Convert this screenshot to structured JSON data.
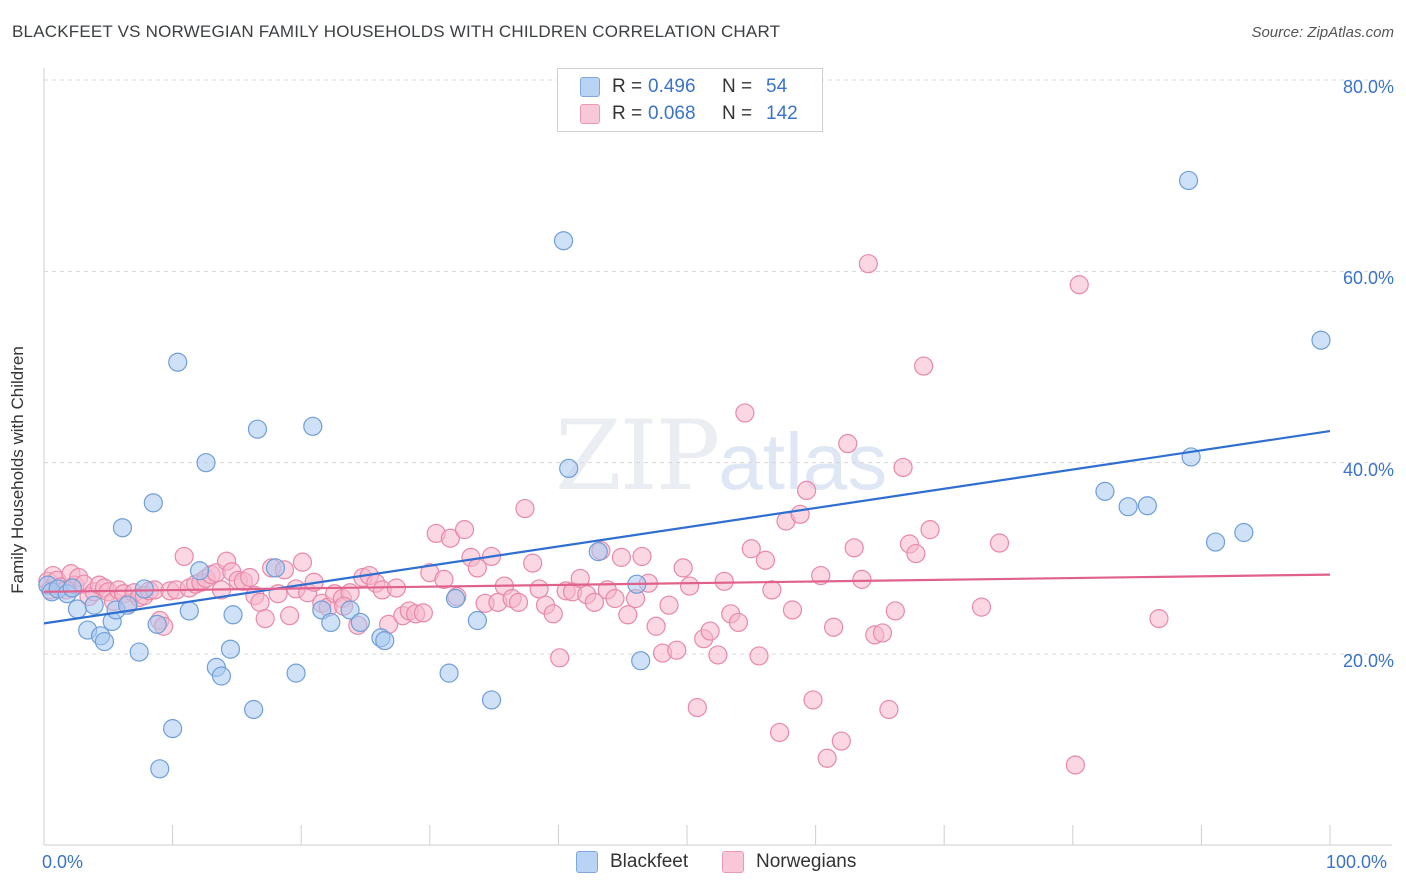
{
  "title": "BLACKFEET VS NORWEGIAN FAMILY HOUSEHOLDS WITH CHILDREN CORRELATION CHART",
  "source": "Source: ZipAtlas.com",
  "watermark": {
    "zip": "ZIP",
    "atlas": "atlas"
  },
  "colors": {
    "blue_fill": "#a8c8f0",
    "blue_stroke": "#6f9fd8",
    "blue_line": "#2f6fcf",
    "pink_fill": "#f6b6cc",
    "pink_stroke": "#e889a8",
    "pink_line": "#e0608e",
    "axis_label": "#3b73c8",
    "grid": "#d8d8d8"
  },
  "legend_top": {
    "rows": [
      {
        "r_label": "R =",
        "r_value": "0.496",
        "n_label": "N =",
        "n_value": "54",
        "color": "blue"
      },
      {
        "r_label": "R =",
        "r_value": "0.068",
        "n_label": "N =",
        "n_value": "142",
        "color": "pink"
      }
    ]
  },
  "legend_bottom": [
    {
      "label": "Blackfeet",
      "color": "blue"
    },
    {
      "label": "Norwegians",
      "color": "pink"
    }
  ],
  "chart_data": {
    "type": "scatter",
    "title": "BLACKFEET VS NORWEGIAN FAMILY HOUSEHOLDS WITH CHILDREN CORRELATION CHART",
    "xlabel": "",
    "ylabel": "Family Households with Children",
    "xlim": [
      0,
      100
    ],
    "ylim": [
      0,
      85
    ],
    "x_tick_labels": [
      "0.0%",
      "100.0%"
    ],
    "y_ticks": [
      20,
      40,
      60,
      80
    ],
    "y_tick_labels": [
      "20.0%",
      "40.0%",
      "60.0%",
      "80.0%"
    ],
    "grid": "horizontal dashed",
    "legend": "top-center",
    "series": [
      {
        "name": "Blackfeet",
        "color": "blue",
        "trend": {
          "x0": 0,
          "y0": 23.2,
          "x1": 100,
          "y1": 43.3
        },
        "points": [
          [
            0.3,
            27.2
          ],
          [
            0.6,
            26.5
          ],
          [
            1.1,
            26.8
          ],
          [
            1.8,
            26.3
          ],
          [
            2.2,
            26.9
          ],
          [
            2.6,
            24.7
          ],
          [
            3.4,
            22.5
          ],
          [
            3.9,
            25.1
          ],
          [
            4.4,
            21.9
          ],
          [
            4.7,
            21.3
          ],
          [
            5.3,
            23.4
          ],
          [
            5.6,
            24.6
          ],
          [
            6.1,
            33.2
          ],
          [
            6.5,
            25.1
          ],
          [
            7.4,
            20.2
          ],
          [
            7.8,
            26.8
          ],
          [
            8.5,
            35.8
          ],
          [
            8.8,
            23.1
          ],
          [
            9.0,
            8.0
          ],
          [
            10.0,
            12.2
          ],
          [
            10.4,
            50.5
          ],
          [
            11.3,
            24.5
          ],
          [
            12.1,
            28.7
          ],
          [
            12.6,
            40.0
          ],
          [
            13.4,
            18.6
          ],
          [
            13.8,
            17.7
          ],
          [
            14.5,
            20.5
          ],
          [
            14.7,
            24.1
          ],
          [
            16.3,
            14.2
          ],
          [
            16.6,
            43.5
          ],
          [
            18.0,
            29.0
          ],
          [
            19.6,
            18.0
          ],
          [
            20.9,
            43.8
          ],
          [
            21.6,
            24.6
          ],
          [
            22.3,
            23.3
          ],
          [
            23.8,
            24.6
          ],
          [
            24.6,
            23.3
          ],
          [
            26.2,
            21.7
          ],
          [
            26.5,
            21.4
          ],
          [
            31.5,
            18.0
          ],
          [
            32.0,
            25.8
          ],
          [
            33.7,
            23.5
          ],
          [
            34.8,
            15.2
          ],
          [
            40.4,
            63.2
          ],
          [
            40.8,
            39.4
          ],
          [
            43.1,
            30.7
          ],
          [
            46.1,
            27.3
          ],
          [
            46.4,
            19.3
          ],
          [
            82.5,
            37.0
          ],
          [
            84.3,
            35.4
          ],
          [
            85.8,
            35.5
          ],
          [
            89.0,
            69.5
          ],
          [
            89.2,
            40.6
          ],
          [
            91.1,
            31.7
          ],
          [
            93.3,
            32.7
          ],
          [
            99.3,
            52.8
          ]
        ]
      },
      {
        "name": "Norwegians",
        "color": "pink",
        "trend": {
          "x0": 0,
          "y0": 26.5,
          "x1": 100,
          "y1": 28.3
        },
        "points": [
          [
            0.3,
            27.6
          ],
          [
            0.5,
            26.7
          ],
          [
            0.7,
            28.2
          ],
          [
            1.0,
            27.7
          ],
          [
            1.3,
            27.0
          ],
          [
            1.7,
            26.7
          ],
          [
            2.1,
            28.4
          ],
          [
            2.4,
            27.2
          ],
          [
            2.7,
            28.0
          ],
          [
            3.1,
            27.3
          ],
          [
            3.5,
            26.0
          ],
          [
            3.9,
            26.5
          ],
          [
            4.3,
            27.2
          ],
          [
            4.7,
            26.9
          ],
          [
            5.0,
            26.5
          ],
          [
            5.4,
            25.5
          ],
          [
            5.8,
            26.7
          ],
          [
            6.2,
            26.3
          ],
          [
            6.6,
            25.3
          ],
          [
            7.0,
            26.4
          ],
          [
            7.4,
            25.9
          ],
          [
            7.8,
            26.1
          ],
          [
            8.2,
            26.6
          ],
          [
            8.6,
            26.7
          ],
          [
            9.0,
            23.5
          ],
          [
            9.3,
            22.9
          ],
          [
            9.8,
            26.6
          ],
          [
            10.3,
            26.7
          ],
          [
            10.9,
            30.2
          ],
          [
            11.3,
            26.9
          ],
          [
            11.8,
            27.3
          ],
          [
            12.2,
            27.5
          ],
          [
            12.6,
            27.9
          ],
          [
            13.0,
            28.3
          ],
          [
            13.4,
            28.5
          ],
          [
            13.8,
            26.7
          ],
          [
            14.2,
            29.7
          ],
          [
            14.6,
            28.6
          ],
          [
            15.1,
            27.7
          ],
          [
            15.5,
            27.6
          ],
          [
            16.0,
            28.0
          ],
          [
            16.4,
            26.1
          ],
          [
            16.8,
            25.4
          ],
          [
            17.2,
            23.7
          ],
          [
            17.7,
            29.0
          ],
          [
            18.2,
            26.3
          ],
          [
            18.7,
            28.8
          ],
          [
            19.1,
            24.0
          ],
          [
            19.6,
            26.8
          ],
          [
            20.1,
            29.6
          ],
          [
            20.5,
            26.4
          ],
          [
            21.0,
            27.5
          ],
          [
            21.6,
            25.3
          ],
          [
            22.1,
            24.9
          ],
          [
            22.6,
            26.3
          ],
          [
            23.2,
            25.8
          ],
          [
            23.8,
            26.4
          ],
          [
            24.4,
            23.0
          ],
          [
            24.8,
            28.0
          ],
          [
            25.3,
            28.2
          ],
          [
            25.8,
            27.4
          ],
          [
            26.3,
            26.7
          ],
          [
            26.8,
            23.1
          ],
          [
            27.4,
            26.9
          ],
          [
            27.9,
            24.0
          ],
          [
            28.4,
            24.5
          ],
          [
            28.9,
            24.2
          ],
          [
            29.5,
            24.3
          ],
          [
            30.0,
            28.5
          ],
          [
            30.5,
            32.6
          ],
          [
            31.1,
            27.8
          ],
          [
            31.6,
            32.1
          ],
          [
            32.1,
            26.0
          ],
          [
            32.7,
            33.0
          ],
          [
            33.2,
            30.1
          ],
          [
            33.7,
            29.0
          ],
          [
            34.3,
            25.3
          ],
          [
            34.8,
            30.2
          ],
          [
            35.3,
            25.4
          ],
          [
            35.8,
            27.1
          ],
          [
            36.4,
            25.8
          ],
          [
            36.9,
            25.4
          ],
          [
            37.4,
            35.2
          ],
          [
            38.0,
            29.5
          ],
          [
            38.5,
            26.8
          ],
          [
            39.0,
            25.1
          ],
          [
            39.6,
            24.2
          ],
          [
            40.1,
            19.6
          ],
          [
            40.6,
            26.6
          ],
          [
            41.1,
            26.5
          ],
          [
            41.7,
            27.9
          ],
          [
            42.2,
            26.2
          ],
          [
            42.8,
            25.4
          ],
          [
            43.3,
            30.8
          ],
          [
            43.8,
            26.7
          ],
          [
            44.4,
            25.8
          ],
          [
            44.9,
            30.1
          ],
          [
            45.4,
            24.1
          ],
          [
            46.0,
            25.8
          ],
          [
            46.5,
            30.2
          ],
          [
            47.0,
            27.4
          ],
          [
            47.6,
            22.9
          ],
          [
            48.1,
            20.1
          ],
          [
            48.6,
            25.1
          ],
          [
            49.2,
            20.4
          ],
          [
            49.7,
            29.0
          ],
          [
            50.2,
            27.1
          ],
          [
            50.8,
            14.4
          ],
          [
            51.3,
            21.6
          ],
          [
            51.8,
            22.4
          ],
          [
            52.4,
            19.9
          ],
          [
            52.9,
            27.6
          ],
          [
            53.4,
            24.2
          ],
          [
            54.0,
            23.3
          ],
          [
            54.5,
            45.2
          ],
          [
            55.0,
            31.0
          ],
          [
            55.6,
            19.8
          ],
          [
            56.1,
            29.8
          ],
          [
            56.6,
            26.7
          ],
          [
            57.2,
            11.8
          ],
          [
            57.7,
            33.9
          ],
          [
            58.2,
            24.6
          ],
          [
            58.8,
            34.6
          ],
          [
            59.3,
            37.1
          ],
          [
            59.8,
            15.2
          ],
          [
            60.4,
            28.2
          ],
          [
            60.9,
            9.1
          ],
          [
            61.4,
            22.8
          ],
          [
            62.0,
            10.9
          ],
          [
            62.5,
            42.0
          ],
          [
            63.0,
            31.1
          ],
          [
            63.6,
            27.8
          ],
          [
            64.1,
            60.8
          ],
          [
            64.6,
            22.0
          ],
          [
            65.2,
            22.2
          ],
          [
            65.7,
            14.2
          ],
          [
            66.2,
            24.5
          ],
          [
            66.8,
            39.5
          ],
          [
            67.3,
            31.5
          ],
          [
            67.8,
            30.5
          ],
          [
            68.4,
            50.1
          ],
          [
            68.9,
            33.0
          ],
          [
            72.9,
            24.9
          ],
          [
            74.3,
            31.6
          ],
          [
            80.2,
            8.4
          ],
          [
            80.5,
            58.6
          ],
          [
            86.7,
            23.7
          ],
          [
            23.3,
            25.0
          ]
        ]
      }
    ]
  }
}
